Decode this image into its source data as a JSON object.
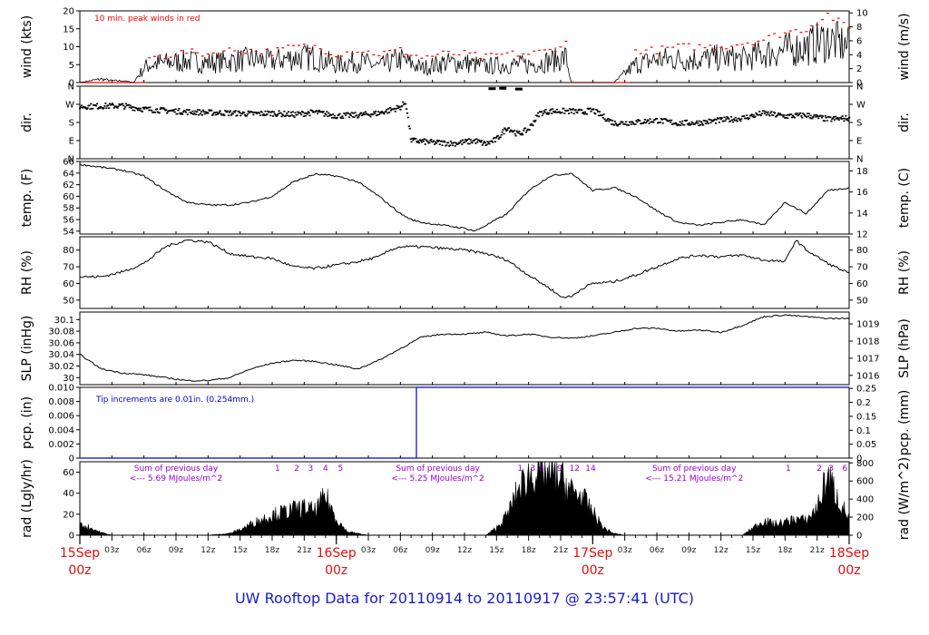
{
  "title": "UW Rooftop Data for 20110914  to  20110917 @ 23:57:41  (UTC)",
  "colors": {
    "peak": "#ff0000",
    "data": "#000000",
    "pcp": "#0000cc",
    "note_blue": "#0000cc",
    "note_purple": "#9900cc",
    "date": "#e01010",
    "title": "#1a1ad0"
  },
  "time_axis": {
    "start_hour": 0,
    "end_hour": 72,
    "hour_ticks": [
      {
        "h": 3,
        "label": "03z"
      },
      {
        "h": 6,
        "label": "06z"
      },
      {
        "h": 9,
        "label": "09z"
      },
      {
        "h": 12,
        "label": "12z"
      },
      {
        "h": 15,
        "label": "15z"
      },
      {
        "h": 18,
        "label": "18z"
      },
      {
        "h": 21,
        "label": "21z"
      },
      {
        "h": 27,
        "label": "03z"
      },
      {
        "h": 30,
        "label": "06z"
      },
      {
        "h": 33,
        "label": "09z"
      },
      {
        "h": 36,
        "label": "12z"
      },
      {
        "h": 39,
        "label": "15z"
      },
      {
        "h": 42,
        "label": "18z"
      },
      {
        "h": 45,
        "label": "21z"
      },
      {
        "h": 51,
        "label": "03z"
      },
      {
        "h": 54,
        "label": "06z"
      },
      {
        "h": 57,
        "label": "09z"
      },
      {
        "h": 60,
        "label": "12z"
      },
      {
        "h": 63,
        "label": "15z"
      },
      {
        "h": 66,
        "label": "18z"
      },
      {
        "h": 69,
        "label": "21z"
      }
    ],
    "date_ticks": [
      {
        "h": 0,
        "date": "15Sep",
        "time": "00z"
      },
      {
        "h": 24,
        "date": "16Sep",
        "time": "00z"
      },
      {
        "h": 48,
        "date": "17Sep",
        "time": "00z"
      },
      {
        "h": 72,
        "date": "18Sep",
        "time": "00z"
      }
    ]
  },
  "chart_data": [
    {
      "type": "line",
      "name": "wind",
      "ylabel": "wind (kts)",
      "ylabel_right": "wind (m/s)",
      "ylim": [
        0,
        20
      ],
      "yticks": [
        0,
        5,
        10,
        15,
        20
      ],
      "right_lim": [
        0,
        10.29
      ],
      "right_ticks": [
        0,
        2,
        4,
        6,
        8,
        10
      ],
      "annotation": "10 min. peak winds in red",
      "series": [
        {
          "x": [
            0,
            1,
            2,
            3,
            4,
            5,
            6,
            6.5,
            8,
            10,
            12,
            14,
            16,
            18,
            20,
            22,
            24,
            26,
            28,
            30,
            32,
            34,
            36,
            38,
            40,
            42,
            44,
            45.5,
            46,
            48,
            50,
            52,
            54,
            56,
            58,
            60,
            62,
            64,
            66,
            68,
            70,
            72
          ],
          "values": [
            0,
            0.5,
            1,
            0.5,
            0.5,
            0,
            4,
            5,
            5.5,
            6,
            5.5,
            6,
            6.5,
            6,
            7,
            7,
            5,
            6,
            4.5,
            6.5,
            4,
            5.5,
            5.5,
            4.5,
            5,
            5,
            6,
            7,
            0,
            0,
            0,
            5,
            6.5,
            6.5,
            6.5,
            7,
            6.5,
            8,
            9,
            10,
            12,
            10
          ]
        },
        {
          "x": [
            6.5,
            8,
            10,
            12,
            14,
            16,
            18,
            20,
            22,
            24,
            26,
            28,
            30,
            32,
            34,
            36,
            38,
            40,
            42,
            44,
            45.5,
            52,
            54,
            56,
            58,
            60,
            62,
            64,
            66,
            68,
            70,
            72
          ],
          "values": [
            7,
            7.5,
            8.5,
            8,
            9,
            9,
            8.5,
            10,
            10,
            8,
            9,
            8,
            9,
            7,
            8,
            8,
            7,
            8,
            8,
            9,
            11,
            9,
            9,
            10,
            10,
            10,
            11,
            12,
            14,
            15,
            19,
            15
          ]
        }
      ]
    },
    {
      "type": "scatter",
      "name": "dir.",
      "ylabel": "dir.",
      "ylabel_right": "dir.",
      "ylim": [
        0,
        360
      ],
      "yticks": [
        0,
        90,
        180,
        270,
        360
      ],
      "ytick_labels": [
        "N",
        "E",
        "S",
        "W",
        "N"
      ],
      "x": [
        0,
        2,
        4,
        6,
        8,
        10,
        12,
        14,
        16,
        18,
        20,
        22,
        24,
        26,
        28,
        30,
        30.5,
        31,
        33,
        35,
        37,
        38,
        39,
        40,
        41,
        42,
        43,
        44,
        46,
        47,
        48,
        50,
        52,
        54,
        56,
        58,
        60,
        62,
        64,
        66,
        68,
        70,
        72
      ],
      "values": [
        258,
        260,
        262,
        245,
        238,
        232,
        228,
        226,
        222,
        225,
        218,
        230,
        212,
        215,
        225,
        255,
        280,
        90,
        80,
        75,
        88,
        72,
        95,
        155,
        120,
        145,
        225,
        235,
        235,
        230,
        240,
        175,
        180,
        190,
        175,
        178,
        190,
        200,
        225,
        210,
        215,
        195,
        200
      ]
    },
    {
      "type": "line",
      "name": "temp",
      "ylabel": "temp. (F)",
      "ylabel_right": "temp. (C)",
      "ylim": [
        53.5,
        66
      ],
      "yticks": [
        54,
        56,
        58,
        60,
        62,
        64,
        66
      ],
      "right_lim": [
        12.0,
        18.9
      ],
      "right_ticks": [
        12,
        14,
        16,
        18
      ],
      "x": [
        0,
        2,
        4,
        6,
        8,
        10,
        12,
        14,
        16,
        18,
        20,
        22,
        24,
        26,
        28,
        30,
        31,
        32,
        34,
        36,
        37,
        38,
        40,
        42,
        44,
        46,
        47,
        48,
        50,
        52,
        54,
        56,
        58,
        60,
        62,
        64,
        66,
        68,
        70,
        72
      ],
      "values": [
        65.5,
        65,
        64.5,
        63.5,
        61,
        59,
        58.5,
        58.5,
        59,
        60,
        62.5,
        63.8,
        63.5,
        62.5,
        60,
        57,
        56,
        55.5,
        55,
        54.5,
        54,
        55,
        57,
        61,
        63.5,
        64,
        62.5,
        61,
        61.5,
        60,
        57.5,
        55.5,
        55,
        55.5,
        56,
        55,
        59,
        57,
        61,
        61.5
      ]
    },
    {
      "type": "line",
      "name": "RH",
      "ylabel": "RH (%)",
      "ylabel_right": "RH (%)",
      "ylim": [
        45,
        88
      ],
      "yticks": [
        50,
        60,
        70,
        80
      ],
      "right_lim": [
        45,
        88
      ],
      "right_ticks": [
        50,
        60,
        70,
        80
      ],
      "x": [
        0,
        2,
        4,
        6,
        8,
        10,
        12,
        14,
        16,
        18,
        20,
        22,
        24,
        26,
        28,
        29,
        30,
        32,
        34,
        36,
        38,
        40,
        42,
        44,
        45,
        46,
        47,
        48,
        50,
        52,
        54,
        56,
        58,
        60,
        62,
        64,
        66,
        67,
        68,
        70,
        72
      ],
      "values": [
        64,
        64,
        67,
        72,
        82,
        86,
        85,
        78,
        76,
        75,
        70,
        69,
        71,
        73,
        76,
        80,
        82,
        82,
        81,
        80,
        78,
        74,
        65,
        57,
        52,
        52,
        57,
        60,
        61,
        65,
        70,
        75,
        77,
        76,
        77,
        74,
        73,
        86,
        80,
        72,
        66
      ]
    },
    {
      "type": "line",
      "name": "SLP",
      "ylabel": "SLP (inHg)",
      "ylabel_right": "SLP (hPa)",
      "ylim": [
        29.988,
        30.113
      ],
      "yticks": [
        30.0,
        30.02,
        30.04,
        30.06,
        30.08,
        30.1
      ],
      "right_lim": [
        1015.46,
        1019.69
      ],
      "right_ticks": [
        1016,
        1017,
        1018,
        1019
      ],
      "x": [
        0,
        2,
        4,
        6,
        8,
        10,
        12,
        14,
        16,
        18,
        20,
        22,
        24,
        26,
        28,
        30,
        32,
        34,
        36,
        38,
        40,
        42,
        44,
        46,
        48,
        50,
        52,
        54,
        56,
        58,
        60,
        62,
        64,
        66,
        68,
        70,
        72
      ],
      "values": [
        30.04,
        30.015,
        30.008,
        30.005,
        30.0,
        29.995,
        29.995,
        30.0,
        30.015,
        30.025,
        30.03,
        30.028,
        30.022,
        30.015,
        30.03,
        30.05,
        30.07,
        30.075,
        30.075,
        30.078,
        30.072,
        30.075,
        30.07,
        30.068,
        30.072,
        30.078,
        30.085,
        30.085,
        30.08,
        30.082,
        30.078,
        30.09,
        30.105,
        30.108,
        30.105,
        30.102,
        30.102
      ]
    },
    {
      "type": "line",
      "name": "pcp",
      "ylabel": "pcp. (in)",
      "ylabel_right": "pcp. (mm)",
      "ylim": [
        0,
        0.01
      ],
      "yticks": [
        0,
        0.002,
        0.004,
        0.006,
        0.008,
        0.01
      ],
      "ytick_labels": [
        "0",
        "0.002",
        "0.004",
        "0.006",
        "0.008",
        "0.010"
      ],
      "right_lim": [
        0,
        0.254
      ],
      "right_ticks": [
        0,
        0.05,
        0.1,
        0.15,
        0.2,
        0.25
      ],
      "right_tick_labels": [
        "0",
        "0.05",
        "0.1",
        "0.15",
        "0.2",
        "0.25"
      ],
      "annotation": "Tip increments are 0.01in. (0.254mm.)",
      "x": [
        0,
        31.5,
        31.5,
        72
      ],
      "values": [
        0,
        0,
        0.01,
        0.01
      ]
    },
    {
      "type": "area",
      "name": "rad",
      "ylabel": "rad (Lgly/hr)",
      "ylabel_right": "rad (W/m^2)",
      "ylim": [
        0,
        70
      ],
      "yticks": [
        0,
        20,
        40,
        60
      ],
      "right_lim": [
        0,
        813
      ],
      "right_ticks": [
        0,
        200,
        400,
        600,
        800
      ],
      "x": [
        0,
        1,
        2,
        3,
        12,
        14,
        15,
        16,
        18,
        20,
        21,
        22,
        23,
        24,
        25,
        27,
        38,
        39,
        40,
        41,
        42,
        43,
        44,
        45,
        46,
        47,
        48,
        49,
        50,
        51,
        62,
        63,
        64,
        65,
        66,
        67,
        68,
        69,
        70,
        71,
        72
      ],
      "values": [
        12,
        8,
        3,
        0,
        0,
        2,
        6,
        12,
        22,
        28,
        30,
        26,
        42,
        18,
        4,
        0,
        0,
        8,
        22,
        48,
        65,
        70,
        66,
        62,
        48,
        42,
        25,
        8,
        2,
        0,
        0,
        8,
        16,
        12,
        14,
        18,
        16,
        30,
        65,
        38,
        18
      ],
      "day_sums": [
        {
          "line1": "Sum of previous day",
          "line2": "<--- 5.69 MJoules/m^2",
          "h": 9
        },
        {
          "line1": "Sum of previous day",
          "line2": "<--- 5.25 MJoules/m^2",
          "h": 33.5
        },
        {
          "line1": "Sum of previous day",
          "line2": "<--- 15.21 MJoules/m^2",
          "h": 57.5
        }
      ],
      "hour_marks": [
        {
          "h": 18.5,
          "label": "1"
        },
        {
          "h": 20.3,
          "label": "2"
        },
        {
          "h": 21.6,
          "label": "3"
        },
        {
          "h": 23.0,
          "label": "4"
        },
        {
          "h": 24.4,
          "label": "5"
        },
        {
          "h": 41.2,
          "label": "1"
        },
        {
          "h": 42.4,
          "label": "3"
        },
        {
          "h": 43.2,
          "label": "6"
        },
        {
          "h": 44.9,
          "label": "9"
        },
        {
          "h": 46.3,
          "label": "12"
        },
        {
          "h": 47.8,
          "label": "14"
        },
        {
          "h": 66.3,
          "label": "1"
        },
        {
          "h": 69.2,
          "label": "2"
        },
        {
          "h": 70.3,
          "label": "3"
        },
        {
          "h": 71.6,
          "label": "6"
        }
      ]
    }
  ]
}
